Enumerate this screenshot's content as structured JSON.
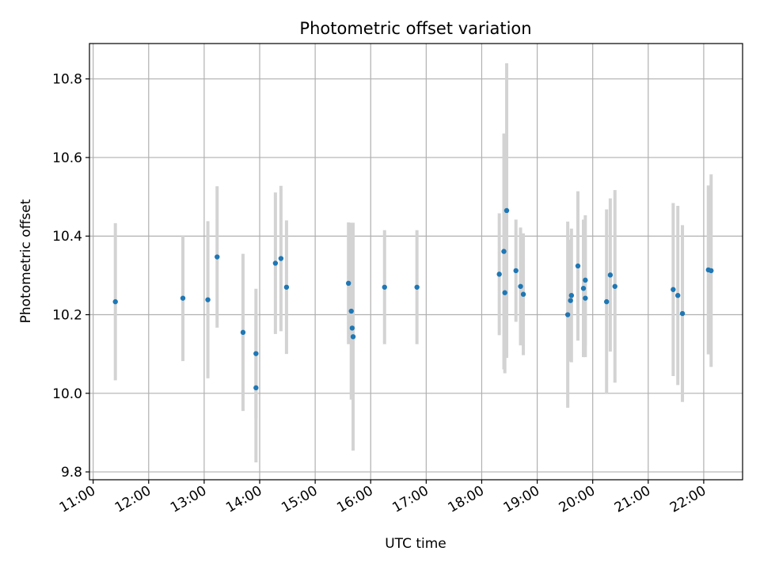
{
  "chart_data": {
    "type": "scatter",
    "title": "Photometric offset variation",
    "xlabel": "UTC time",
    "ylabel": "Photometric offset",
    "x_tick_labels": [
      "11:00",
      "12:00",
      "13:00",
      "14:00",
      "15:00",
      "16:00",
      "17:00",
      "18:00",
      "19:00",
      "20:00",
      "21:00",
      "22:00"
    ],
    "y_tick_labels": [
      "9.8",
      "10.0",
      "10.2",
      "10.4",
      "10.6",
      "10.8"
    ],
    "x_ticks": [
      "11:00",
      "12:00",
      "13:00",
      "14:00",
      "15:00",
      "16:00",
      "17:00",
      "18:00",
      "19:00",
      "20:00",
      "21:00",
      "22:00"
    ],
    "y_ticks": [
      9.8,
      10.0,
      10.2,
      10.4,
      10.6,
      10.8
    ],
    "xlim": [
      "10:56",
      "22:42"
    ],
    "ylim": [
      9.78,
      10.89
    ],
    "grid": true,
    "colors": {
      "point": "#1f77b4",
      "errorbar": "#d3d3d3",
      "grid": "#b0b0b0"
    },
    "points": [
      {
        "x": "11:24",
        "y": 10.233,
        "yerr": 0.2
      },
      {
        "x": "12:37",
        "y": 10.242,
        "yerr": 0.16
      },
      {
        "x": "13:04",
        "y": 10.238,
        "yerr": 0.2
      },
      {
        "x": "13:14",
        "y": 10.347,
        "yerr": 0.18
      },
      {
        "x": "13:42",
        "y": 10.155,
        "yerr": 0.2
      },
      {
        "x": "13:56",
        "y": 10.101,
        "yerr": 0.165
      },
      {
        "x": "13:56",
        "y": 10.014,
        "yerr": 0.19
      },
      {
        "x": "14:17",
        "y": 10.331,
        "yerr": 0.18
      },
      {
        "x": "14:23",
        "y": 10.343,
        "yerr": 0.185
      },
      {
        "x": "14:29",
        "y": 10.27,
        "yerr": 0.17
      },
      {
        "x": "15:36",
        "y": 10.28,
        "yerr": 0.155
      },
      {
        "x": "15:39",
        "y": 10.209,
        "yerr": 0.225
      },
      {
        "x": "15:40",
        "y": 10.166,
        "yerr": 0.15
      },
      {
        "x": "15:41",
        "y": 10.144,
        "yerr": 0.29
      },
      {
        "x": "16:15",
        "y": 10.27,
        "yerr": 0.145
      },
      {
        "x": "16:50",
        "y": 10.27,
        "yerr": 0.145
      },
      {
        "x": "18:19",
        "y": 10.303,
        "yerr": 0.155
      },
      {
        "x": "18:24",
        "y": 10.361,
        "yerr": 0.3
      },
      {
        "x": "18:25",
        "y": 10.256,
        "yerr": 0.205
      },
      {
        "x": "18:27",
        "y": 10.465,
        "yerr": 0.375
      },
      {
        "x": "18:37",
        "y": 10.312,
        "yerr": 0.13
      },
      {
        "x": "18:42",
        "y": 10.272,
        "yerr": 0.15
      },
      {
        "x": "18:45",
        "y": 10.252,
        "yerr": 0.155
      },
      {
        "x": "19:33",
        "y": 10.2,
        "yerr": 0.237
      },
      {
        "x": "19:36",
        "y": 10.236,
        "yerr": 0.155
      },
      {
        "x": "19:37",
        "y": 10.249,
        "yerr": 0.17
      },
      {
        "x": "19:44",
        "y": 10.324,
        "yerr": 0.19
      },
      {
        "x": "19:50",
        "y": 10.267,
        "yerr": 0.175
      },
      {
        "x": "19:52",
        "y": 10.288,
        "yerr": 0.165
      },
      {
        "x": "19:52",
        "y": 10.242,
        "yerr": 0.15
      },
      {
        "x": "20:15",
        "y": 10.233,
        "yerr": 0.235
      },
      {
        "x": "20:19",
        "y": 10.301,
        "yerr": 0.195
      },
      {
        "x": "20:24",
        "y": 10.272,
        "yerr": 0.245
      },
      {
        "x": "21:27",
        "y": 10.264,
        "yerr": 0.22
      },
      {
        "x": "21:32",
        "y": 10.249,
        "yerr": 0.228
      },
      {
        "x": "21:37",
        "y": 10.203,
        "yerr": 0.225
      },
      {
        "x": "22:05",
        "y": 10.314,
        "yerr": 0.215
      },
      {
        "x": "22:08",
        "y": 10.312,
        "yerr": 0.245
      }
    ]
  }
}
